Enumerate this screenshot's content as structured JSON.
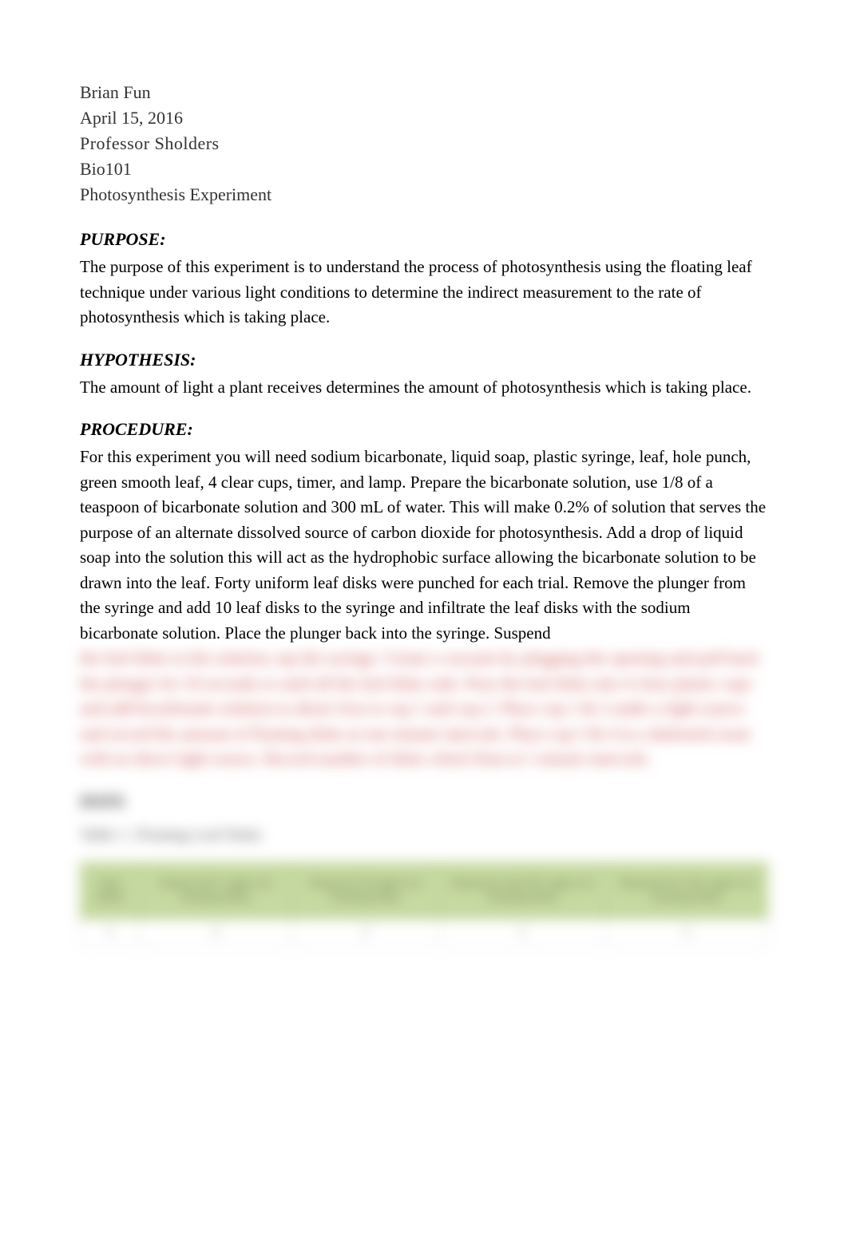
{
  "header": {
    "name": "Brian Fun",
    "date": "April 15, 2016",
    "professor": "Professor  Sholders",
    "course": "Bio101",
    "title": "Photosynthesis Experiment"
  },
  "sections": {
    "purpose": {
      "heading": "PURPOSE:",
      "text": "The purpose of this experiment is to understand the process of photosynthesis using the floating leaf technique under various light conditions to determine the indirect measurement to the rate of photosynthesis which is taking place."
    },
    "hypothesis": {
      "heading": "HYPOTHESIS:",
      "text": "The amount of light a plant receives determines the amount of photosynthesis which is taking place."
    },
    "procedure": {
      "heading": "PROCEDURE:",
      "text": "For this experiment you will need sodium bicarbonate, liquid soap, plastic syringe, leaf, hole punch, green smooth leaf, 4 clear cups, timer, and lamp. Prepare the bicarbonate solution, use 1/8 of a teaspoon of bicarbonate solution and 300 mL of water. This will make 0.2% of solution that serves the purpose of an alternate dissolved source of carbon dioxide for photosynthesis. Add a drop of liquid soap into the solution this will act as the hydrophobic surface allowing the bicarbonate solution to be drawn into the leaf.  Forty uniform leaf disks were punched for each trial.  Remove the plunger from the syringe and add 10 leaf disks to the syringe and infiltrate the leaf disks with the sodium bicarbonate solution. Place the plunger back into the syringe. Suspend"
    }
  },
  "blurred": {
    "procedure_cont": "the leaf disks in the solution, tap the syringe. Create a vacuum by plugging the opening and pull back the plunger for 10 seconds or until all the leaf disks sink. Pour the leaf disks into 4 clear plastic cups and add bicarbonate solution to about 3cm to cup 1 and cup 2. Place cup 1 & 2 under a light source and record the amount of floating disks at one minute intervals.  Place cup 3 & 4 in a darkened room with no direct light source.  Record number of disks which float at 1 minute intervals.",
    "data_heading": "DATA",
    "table_title": "Table 1.  Floating Leaf Disks",
    "table": {
      "columns": [
        "Time (Min)",
        "Plastic(1)W/ Light # of Floating Disks",
        "Plastic(2) W/Light # of Floating Disks",
        "Plastic(3) with NO Light # of Floating Disks",
        "Plastic(4) W/ NO Light # of Floating Disks"
      ],
      "header_bg": "#c6d9a0",
      "header_text_color": "#5a6b3a",
      "row1": [
        "0",
        "0",
        "0",
        "0",
        "0"
      ]
    }
  },
  "styling": {
    "page_bg": "#ffffff",
    "header_font": "Georgia",
    "body_font": "Times New Roman",
    "header_font_size": 22,
    "body_font_size": 21,
    "heading_font_size": 22,
    "text_color": "#000000",
    "header_text_color": "#333333",
    "blur_text_color": "#c94a4a"
  }
}
